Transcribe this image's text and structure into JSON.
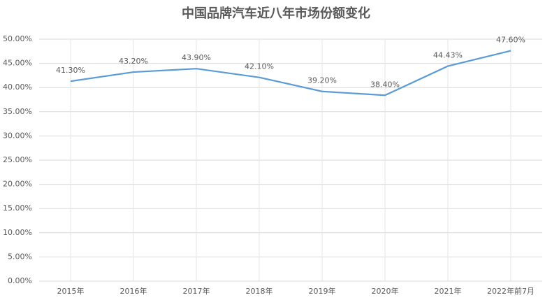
{
  "chart_data": {
    "type": "line",
    "title": "中国品牌汽车近八年市场份额变化",
    "categories": [
      "2015年",
      "2016年",
      "2017年",
      "2018年",
      "2019年",
      "2020年",
      "2021年",
      "2022年前7月"
    ],
    "series": [
      {
        "name": "市场份额",
        "color": "#5b9bd5",
        "values": [
          41.3,
          43.2,
          43.9,
          42.1,
          39.2,
          38.4,
          44.43,
          47.6
        ],
        "value_labels": [
          "41.30%",
          "43.20%",
          "43.90%",
          "42.10%",
          "39.20%",
          "38.40%",
          "44.43%",
          "47.60%"
        ]
      }
    ],
    "ylim": [
      0,
      50
    ],
    "yticks": [
      {
        "value": 0,
        "label": "0.00%"
      },
      {
        "value": 5,
        "label": "5.00%"
      },
      {
        "value": 10,
        "label": "10.00%"
      },
      {
        "value": 15,
        "label": "15.00%"
      },
      {
        "value": 20,
        "label": "20.00%"
      },
      {
        "value": 25,
        "label": "25.00%"
      },
      {
        "value": 30,
        "label": "30.00%"
      },
      {
        "value": 35,
        "label": "35.00%"
      },
      {
        "value": 40,
        "label": "40.00%"
      },
      {
        "value": 45,
        "label": "45.00%"
      },
      {
        "value": 50,
        "label": "50.00%"
      }
    ],
    "grid": true
  }
}
